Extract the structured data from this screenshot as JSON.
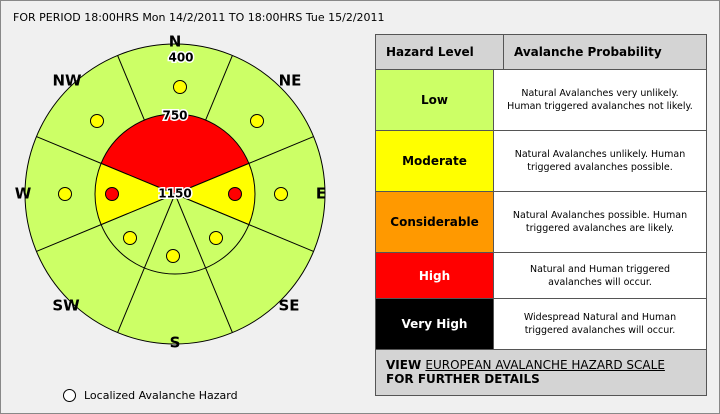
{
  "period": "FOR PERIOD 18:00HRS Mon 14/2/2011 TO 18:00HRS Tue 15/2/2011",
  "rose": {
    "directions": {
      "n": "N",
      "ne": "NE",
      "e": "E",
      "se": "SE",
      "s": "S",
      "sw": "SW",
      "w": "W",
      "nw": "NW"
    },
    "elevations": {
      "low": "400",
      "mid": "750",
      "high": "1150"
    }
  },
  "legend": {
    "label": "Localized Avalanche Hazard"
  },
  "table": {
    "header": [
      "Hazard Level",
      "Avalanche Probability"
    ],
    "rows": [
      [
        "Low",
        "Natural Avalanches very unlikely. Human triggered avalanches not likely."
      ],
      [
        "Moderate",
        "Natural Avalanches unlikely. Human triggered avalanches possible."
      ],
      [
        "Considerable",
        "Natural Avalanches possible. Human triggered avalanches are likely."
      ],
      [
        "High",
        "Natural and Human triggered avalanches will occur."
      ],
      [
        "Very High",
        "Widespread Natural and Human triggered avalanches will occur."
      ]
    ],
    "footer": {
      "view": "VIEW",
      "link": "EUROPEAN AVALANCHE HAZARD SCALE",
      "details": "FOR FURTHER DETAILS"
    }
  }
}
